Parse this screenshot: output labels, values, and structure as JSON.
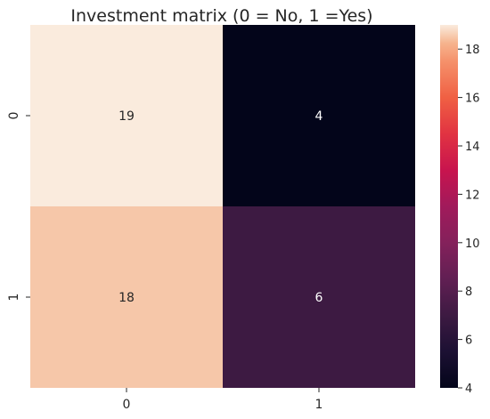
{
  "chart_data": {
    "type": "heatmap",
    "title": "Investment matrix (0 = No, 1 =Yes)",
    "xlabel": "",
    "ylabel": "",
    "x_categories": [
      "0",
      "1"
    ],
    "y_categories": [
      "0",
      "1"
    ],
    "values": [
      [
        19,
        4
      ],
      [
        18,
        6
      ]
    ],
    "annotations": true,
    "colormap": "rocket",
    "colorbar": {
      "range": [
        4,
        19
      ],
      "ticks": [
        4,
        6,
        8,
        10,
        12,
        14,
        16,
        18
      ],
      "tick_labels": [
        "4",
        "6",
        "8",
        "10",
        "12",
        "14",
        "16",
        "18"
      ]
    },
    "cell_colors": [
      [
        "#faebdd",
        "#03051a"
      ],
      [
        "#f6c7a9",
        "#3d1a42"
      ]
    ],
    "annotation_colors": [
      [
        "#262626",
        "#ffffff"
      ],
      [
        "#262626",
        "#ffffff"
      ]
    ]
  }
}
